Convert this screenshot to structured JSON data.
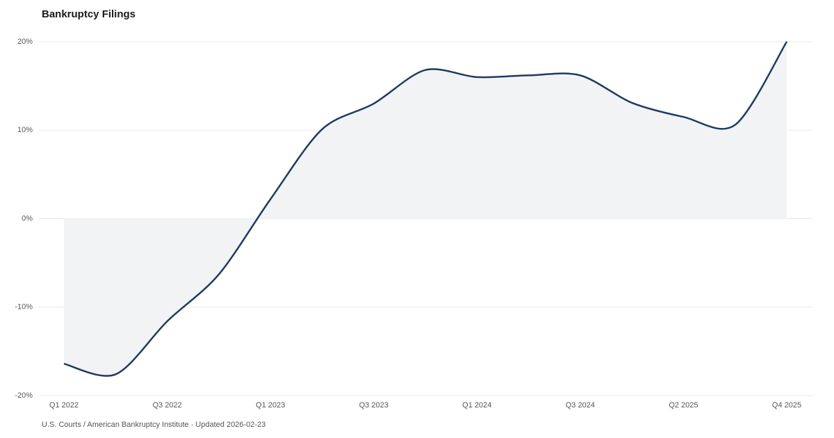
{
  "chart_data": {
    "type": "line",
    "title": "Bankruptcy Filings",
    "categories": [
      "Q1 2022",
      null,
      "Q3 2022",
      null,
      "Q1 2023",
      null,
      "Q3 2023",
      null,
      "Q1 2024",
      null,
      "Q3 2024",
      null,
      "Q2 2025",
      null,
      "Q4 2025"
    ],
    "series": [
      {
        "color": "#1f3a5f",
        "values": [
          -16.4,
          -17.6,
          -11.6,
          -6.3,
          2.2,
          10.1,
          13.0,
          16.8,
          16.0,
          16.2,
          16.2,
          13.1,
          11.5,
          10.6,
          20.0
        ]
      }
    ],
    "area_color": "#f2f3f5",
    "ylim": [
      -20,
      20
    ],
    "yticks": [
      {
        "value": -20,
        "label": "-20%"
      },
      {
        "value": -10,
        "label": "-10%"
      },
      {
        "value": 0,
        "label": "0%"
      },
      {
        "value": 10,
        "label": "10%"
      },
      {
        "value": 20,
        "label": "20%"
      }
    ],
    "grid": true,
    "source": "U.S. Courts / American Bankruptcy Institute · Updated 2026-02-23"
  }
}
